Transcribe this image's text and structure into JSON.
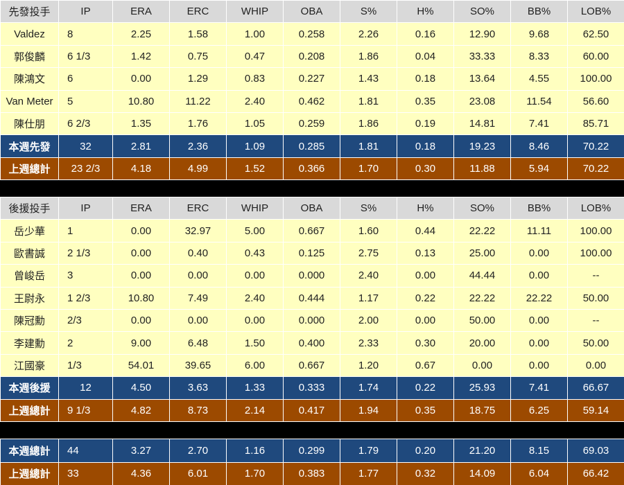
{
  "columns": [
    "IP",
    "ERA",
    "ERC",
    "WHIP",
    "OBA",
    "S%",
    "H%",
    "SO%",
    "BB%",
    "LOB%"
  ],
  "starters": {
    "header": "先發投手",
    "rows": [
      {
        "name": "Valdez",
        "values": [
          "8",
          "2.25",
          "1.58",
          "1.00",
          "0.258",
          "2.26",
          "0.16",
          "12.90",
          "9.68",
          "62.50"
        ]
      },
      {
        "name": "郭俊麟",
        "values": [
          "6 1/3",
          "1.42",
          "0.75",
          "0.47",
          "0.208",
          "1.86",
          "0.04",
          "33.33",
          "8.33",
          "60.00"
        ]
      },
      {
        "name": "陳鴻文",
        "values": [
          "6",
          "0.00",
          "1.29",
          "0.83",
          "0.227",
          "1.43",
          "0.18",
          "13.64",
          "4.55",
          "100.00"
        ]
      },
      {
        "name": "Van Meter",
        "values": [
          "5",
          "10.80",
          "11.22",
          "2.40",
          "0.462",
          "1.81",
          "0.35",
          "23.08",
          "11.54",
          "56.60"
        ]
      },
      {
        "name": "陳仕朋",
        "values": [
          "6 2/3",
          "1.35",
          "1.76",
          "1.05",
          "0.259",
          "1.86",
          "0.19",
          "14.81",
          "7.41",
          "85.71"
        ]
      }
    ],
    "week_total": {
      "name": "本週先發",
      "values": [
        "32",
        "2.81",
        "2.36",
        "1.09",
        "0.285",
        "1.81",
        "0.18",
        "19.23",
        "8.46",
        "70.22"
      ]
    },
    "last_week": {
      "name": "上週總計",
      "values": [
        "23 2/3",
        "4.18",
        "4.99",
        "1.52",
        "0.366",
        "1.70",
        "0.30",
        "11.88",
        "5.94",
        "70.22"
      ]
    }
  },
  "relievers": {
    "header": "後援投手",
    "rows": [
      {
        "name": "岳少華",
        "values": [
          "1",
          "0.00",
          "32.97",
          "5.00",
          "0.667",
          "1.60",
          "0.44",
          "22.22",
          "11.11",
          "100.00"
        ]
      },
      {
        "name": "歐書誠",
        "values": [
          "2 1/3",
          "0.00",
          "0.40",
          "0.43",
          "0.125",
          "2.75",
          "0.13",
          "25.00",
          "0.00",
          "100.00"
        ]
      },
      {
        "name": "曾峻岳",
        "values": [
          "3",
          "0.00",
          "0.00",
          "0.00",
          "0.000",
          "2.40",
          "0.00",
          "44.44",
          "0.00",
          "--"
        ]
      },
      {
        "name": "王尉永",
        "values": [
          "1 2/3",
          "10.80",
          "7.49",
          "2.40",
          "0.444",
          "1.17",
          "0.22",
          "22.22",
          "22.22",
          "50.00"
        ]
      },
      {
        "name": "陳冠勳",
        "values": [
          "2/3",
          "0.00",
          "0.00",
          "0.00",
          "0.000",
          "2.00",
          "0.00",
          "50.00",
          "0.00",
          "--"
        ]
      },
      {
        "name": "李建勳",
        "values": [
          "2",
          "9.00",
          "6.48",
          "1.50",
          "0.400",
          "2.33",
          "0.30",
          "20.00",
          "0.00",
          "50.00"
        ]
      },
      {
        "name": "江國豪",
        "values": [
          "1/3",
          "54.01",
          "39.65",
          "6.00",
          "0.667",
          "1.20",
          "0.67",
          "0.00",
          "0.00",
          "0.00"
        ]
      }
    ],
    "week_total": {
      "name": "本週後援",
      "values": [
        "12",
        "4.50",
        "3.63",
        "1.33",
        "0.333",
        "1.74",
        "0.22",
        "25.93",
        "7.41",
        "66.67"
      ]
    },
    "last_week": {
      "name": "上週總計",
      "values": [
        "9 1/3",
        "4.82",
        "8.73",
        "2.14",
        "0.417",
        "1.94",
        "0.35",
        "18.75",
        "6.25",
        "59.14"
      ]
    }
  },
  "totals": {
    "week_total": {
      "name": "本週總計",
      "values": [
        "44",
        "3.27",
        "2.70",
        "1.16",
        "0.299",
        "1.79",
        "0.20",
        "21.20",
        "8.15",
        "69.03"
      ]
    },
    "last_week": {
      "name": "上週總計",
      "values": [
        "33",
        "4.36",
        "6.01",
        "1.70",
        "0.383",
        "1.77",
        "0.32",
        "14.09",
        "6.04",
        "66.42"
      ]
    }
  },
  "colors": {
    "header_bg": "#d9d9d9",
    "row_bg": "#ffffc0",
    "week_total_bg": "#1f497d",
    "last_week_bg": "#9c4a00",
    "separator": "#000000"
  }
}
